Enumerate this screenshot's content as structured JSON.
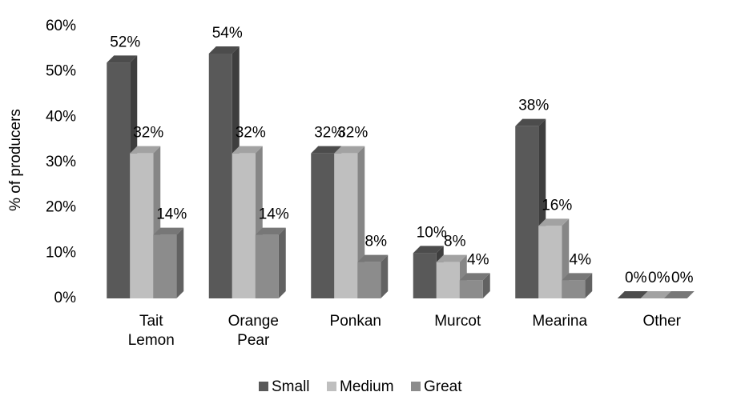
{
  "chart_data": {
    "type": "bar3d",
    "y_label": "% of producers",
    "categories": [
      "Tait Lemon",
      "Orange Pear",
      "Ponkan",
      "Murcot",
      "Mearina",
      "Other"
    ],
    "series": [
      {
        "name": "Small",
        "color": "#595959",
        "values": [
          52,
          54,
          32,
          10,
          38,
          0
        ],
        "value_labels": [
          "52%",
          "54%",
          "32%",
          "10%",
          "38%",
          "0%"
        ]
      },
      {
        "name": "Medium",
        "color": "#bfbfbf",
        "values": [
          32,
          32,
          32,
          8,
          16,
          0
        ],
        "value_labels": [
          "32%",
          "32%",
          "32%",
          "8%",
          "16%",
          "0%"
        ]
      },
      {
        "name": "Great",
        "color": "#8c8c8c",
        "values": [
          14,
          14,
          8,
          4,
          4,
          0
        ],
        "value_labels": [
          "14%",
          "14%",
          "8%",
          "4%",
          "4%",
          "0%"
        ]
      }
    ],
    "ylim": [
      0,
      60
    ],
    "yticks": [
      {
        "value": 0,
        "label": "0%"
      },
      {
        "value": 10,
        "label": "10%"
      },
      {
        "value": 20,
        "label": "20%"
      },
      {
        "value": 30,
        "label": "30%"
      },
      {
        "value": 40,
        "label": "40%"
      },
      {
        "value": 50,
        "label": "50%"
      },
      {
        "value": 60,
        "label": "60%"
      }
    ],
    "legend": "bottom"
  }
}
